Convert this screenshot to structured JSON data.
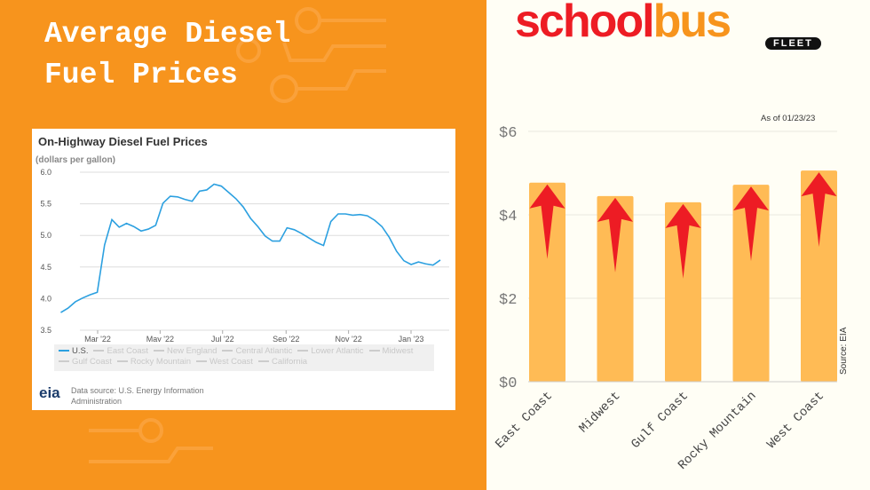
{
  "header": {
    "title_line1": "Average Diesel",
    "title_line2": "Fuel Prices"
  },
  "logo": {
    "text_school": "school",
    "text_bus": "bus",
    "text_fleet": "FLEET",
    "mark": "®"
  },
  "colors": {
    "background_left": "#f7941d",
    "background_right": "#fffef5",
    "line": "#2ca0e0",
    "bar": "#ffbb55",
    "arrow": "#ed1c24",
    "logo_red": "#ed1c24",
    "logo_orange": "#f7941d"
  },
  "chart_data": [
    {
      "type": "line",
      "title": "On-Highway Diesel Fuel Prices",
      "ylabel": "(dollars per gallon)",
      "ylim": [
        3.5,
        6.0
      ],
      "yticks": [
        "6.0",
        "5.5",
        "5.0",
        "4.5",
        "4.0",
        "3.5"
      ],
      "xticks": [
        "Mar '22",
        "May '22",
        "Jul '22",
        "Sep '22",
        "Nov '22",
        "Jan '23"
      ],
      "grid": true,
      "legend_placement": "bottom",
      "legend": [
        "U.S.",
        "East Coast",
        "New England",
        "Central Atlantic",
        "Lower Atlantic",
        "Midwest",
        "Gulf Coast",
        "Rocky Mountain",
        "West Coast",
        "California"
      ],
      "series": [
        {
          "name": "U.S.",
          "x_start": "2022-01-24",
          "x_interval": "weekly",
          "values": [
            3.78,
            3.85,
            3.95,
            4.01,
            4.06,
            4.1,
            4.85,
            5.25,
            5.13,
            5.19,
            5.14,
            5.07,
            5.1,
            5.16,
            5.51,
            5.62,
            5.61,
            5.57,
            5.54,
            5.7,
            5.72,
            5.81,
            5.78,
            5.68,
            5.58,
            5.45,
            5.27,
            5.14,
            4.99,
            4.91,
            4.91,
            5.12,
            5.09,
            5.03,
            4.96,
            4.89,
            4.84,
            5.22,
            5.34,
            5.34,
            5.32,
            5.33,
            5.31,
            5.24,
            5.14,
            4.97,
            4.75,
            4.6,
            4.54,
            4.58,
            4.55,
            4.53,
            4.61
          ]
        }
      ],
      "source": "Data source: U.S. Energy Information Administration",
      "source_logo": "eia"
    },
    {
      "type": "bar",
      "annotation": "As of 01/23/23",
      "source": "Source: EIA",
      "categories": [
        "East Coast",
        "Midwest",
        "Gulf Coast",
        "Rocky Mountain",
        "West Coast"
      ],
      "values": [
        4.77,
        4.45,
        4.3,
        4.72,
        5.06
      ],
      "ylim": [
        0,
        6
      ],
      "yticks": [
        "$0",
        "$2",
        "$4",
        "$6"
      ],
      "grid": true,
      "icons": "arrow-up-icon on each bar"
    }
  ]
}
